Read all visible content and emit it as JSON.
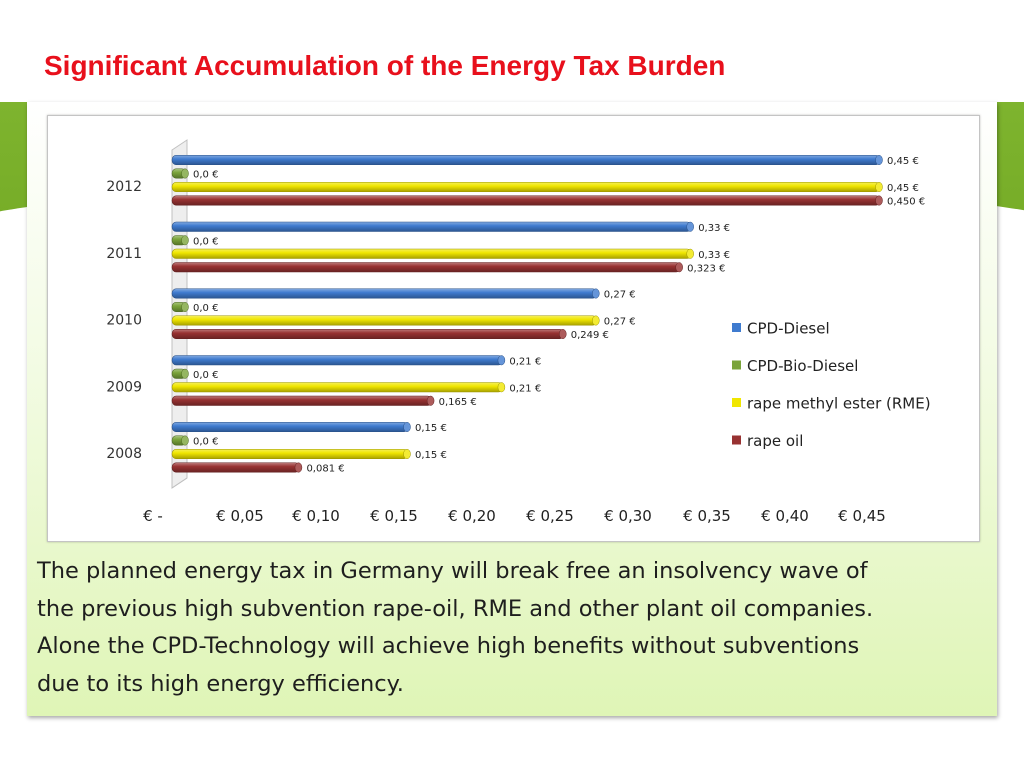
{
  "slide": {
    "title": "Significant Accumulation of the Energy Tax Burden",
    "body_lines": [
      "The planned energy tax in Germany will break free an insolvency wave of",
      "the previous high subvention rape-oil, RME and other plant oil companies.",
      "Alone the CPD-Technology will achieve high benefits  without subventions",
      "due to its high energy efficiency."
    ]
  },
  "chart_data": {
    "type": "bar",
    "orientation": "horizontal",
    "style": "3d-cylinder",
    "categories": [
      "2012",
      "2011",
      "2010",
      "2009",
      "2008"
    ],
    "xlim": [
      0,
      0.45
    ],
    "x_tick_labels": [
      "€ -",
      "€ 0,05",
      "€ 0,10",
      "€ 0,15",
      "€ 0,20",
      "€ 0,25",
      "€ 0,30",
      "€ 0,35",
      "€ 0,40",
      "€ 0,45"
    ],
    "legend_position": "right",
    "series": [
      {
        "name": "CPD-Diesel",
        "color": "#3f7bcf",
        "values": [
          0.45,
          0.33,
          0.27,
          0.21,
          0.15
        ],
        "labels": [
          "0,45 €",
          "0,33 €",
          "0,27 €",
          "0,21 €",
          "0,15 €"
        ]
      },
      {
        "name": "CPD-Bio-Diesel",
        "color": "#7aa43a",
        "values": [
          0.0,
          0.0,
          0.0,
          0.0,
          0.0
        ],
        "labels": [
          "0,0 €",
          "0,0 €",
          "0,0 €",
          "0,0 €",
          "0,0 €"
        ]
      },
      {
        "name": "rape methyl ester (RME)",
        "color": "#f0e600",
        "values": [
          0.45,
          0.33,
          0.27,
          0.21,
          0.15
        ],
        "labels": [
          "0,45 €",
          "0,33 €",
          "0,27 €",
          "0,21 €",
          "0,15 €"
        ]
      },
      {
        "name": "rape oil",
        "color": "#983232",
        "values": [
          0.45,
          0.323,
          0.249,
          0.165,
          0.081
        ],
        "labels": [
          "0,450 €",
          "0,323 €",
          "0,249 €",
          "0,165 €",
          "0,081 €"
        ]
      }
    ]
  }
}
